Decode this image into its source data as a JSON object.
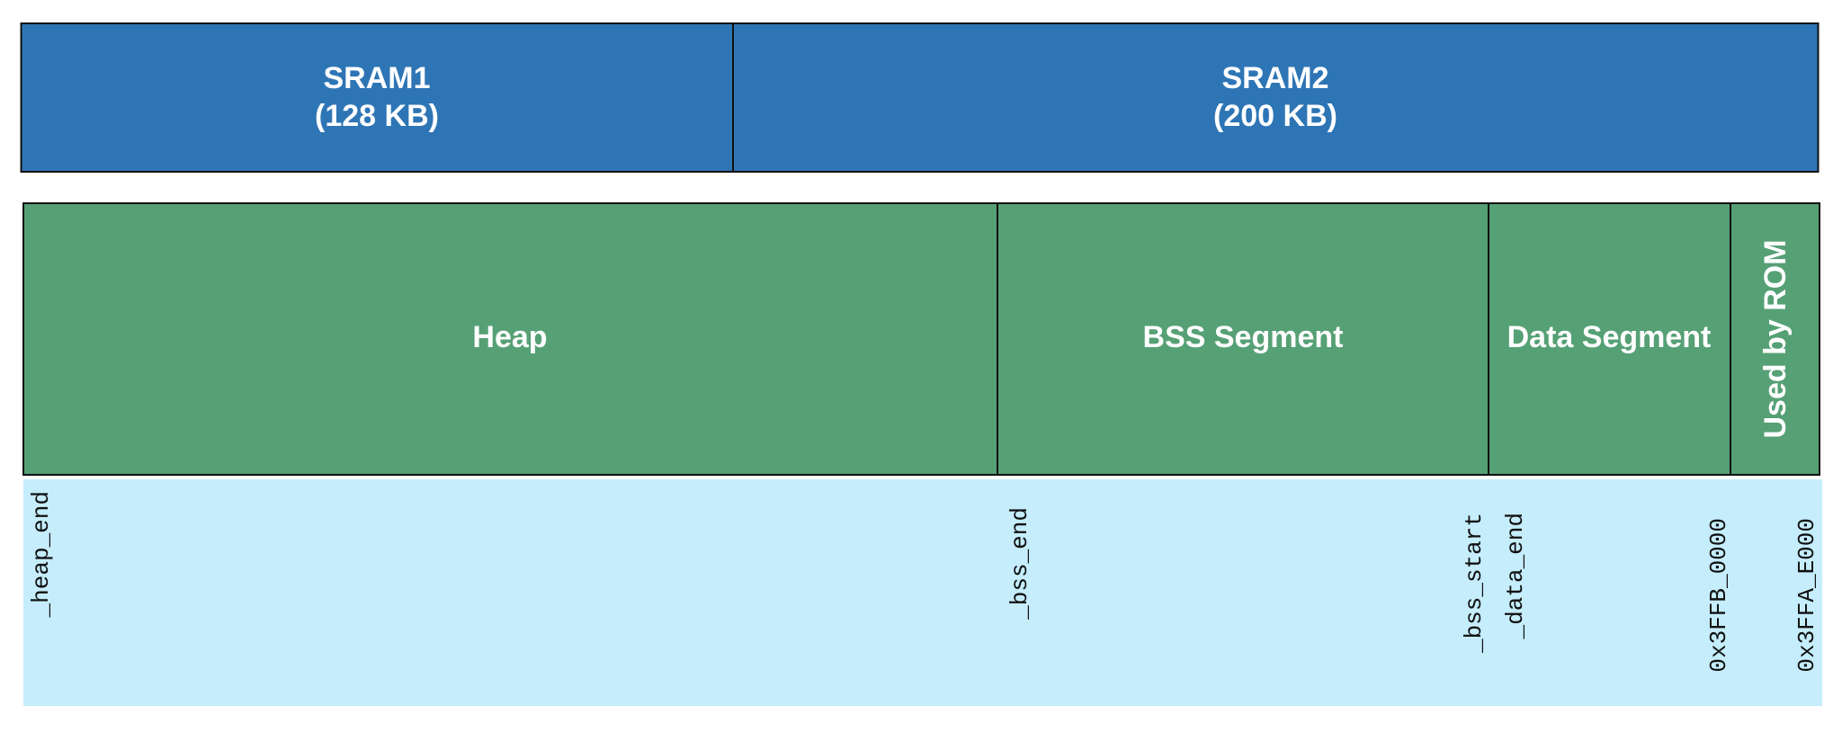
{
  "memory_regions": [
    {
      "lines": [
        "SRAM1",
        "(128 KB)"
      ]
    },
    {
      "lines": [
        "SRAM2",
        "(200 KB)"
      ]
    }
  ],
  "segments": [
    "Heap",
    "BSS Segment",
    "Data Segment",
    "Used by ROM"
  ],
  "addresses": [
    "_heap_end",
    "_bss_end",
    "_bss_start",
    "_data_end",
    "0x3FFB_0000",
    "0x3FFA_E000"
  ]
}
